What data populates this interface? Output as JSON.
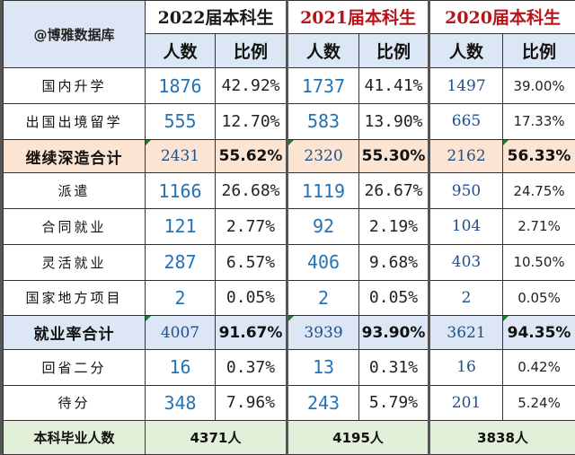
{
  "header": {
    "corner_label": "@博雅数据库",
    "years": [
      "2022届本科生",
      "2021届本科生",
      "2020届本科生"
    ],
    "sub_count": "人数",
    "sub_ratio": "比例"
  },
  "rows": [
    {
      "label": "国内升学",
      "v": [
        "1876",
        "42.92%",
        "1737",
        "41.41%",
        "1497",
        "39.00%"
      ]
    },
    {
      "label": "出国出境留学",
      "v": [
        "555",
        "12.70%",
        "583",
        "13.90%",
        "665",
        "17.33%"
      ]
    },
    {
      "label": "继续深造合计",
      "v": [
        "2431",
        "55.62%",
        "2320",
        "55.30%",
        "2162",
        "56.33%"
      ]
    },
    {
      "label": "派遣",
      "v": [
        "1166",
        "26.68%",
        "1119",
        "26.67%",
        "950",
        "24.75%"
      ]
    },
    {
      "label": "合同就业",
      "v": [
        "121",
        "2.77%",
        "92",
        "2.19%",
        "104",
        "2.71%"
      ]
    },
    {
      "label": "灵活就业",
      "v": [
        "287",
        "6.57%",
        "406",
        "9.68%",
        "403",
        "10.50%"
      ]
    },
    {
      "label": "国家地方项目",
      "v": [
        "2",
        "0.05%",
        "2",
        "0.05%",
        "2",
        "0.05%"
      ]
    },
    {
      "label": "就业率合计",
      "v": [
        "4007",
        "91.67%",
        "3939",
        "93.90%",
        "3621",
        "94.35%"
      ]
    },
    {
      "label": "回省二分",
      "v": [
        "16",
        "0.37%",
        "13",
        "0.31%",
        "16",
        "0.42%"
      ]
    },
    {
      "label": "待分",
      "v": [
        "348",
        "7.96%",
        "243",
        "5.79%",
        "201",
        "5.24%"
      ]
    }
  ],
  "totals": {
    "label": "本科毕业人数",
    "v": [
      "4371人",
      "4195人",
      "3838人"
    ]
  },
  "colors": {
    "header_blue": "#dce6f4",
    "sum_orange": "#fce4d2",
    "total_green": "#e2efd9",
    "handwriting_blue": "#2473b8",
    "year_red": "#b8141c"
  }
}
